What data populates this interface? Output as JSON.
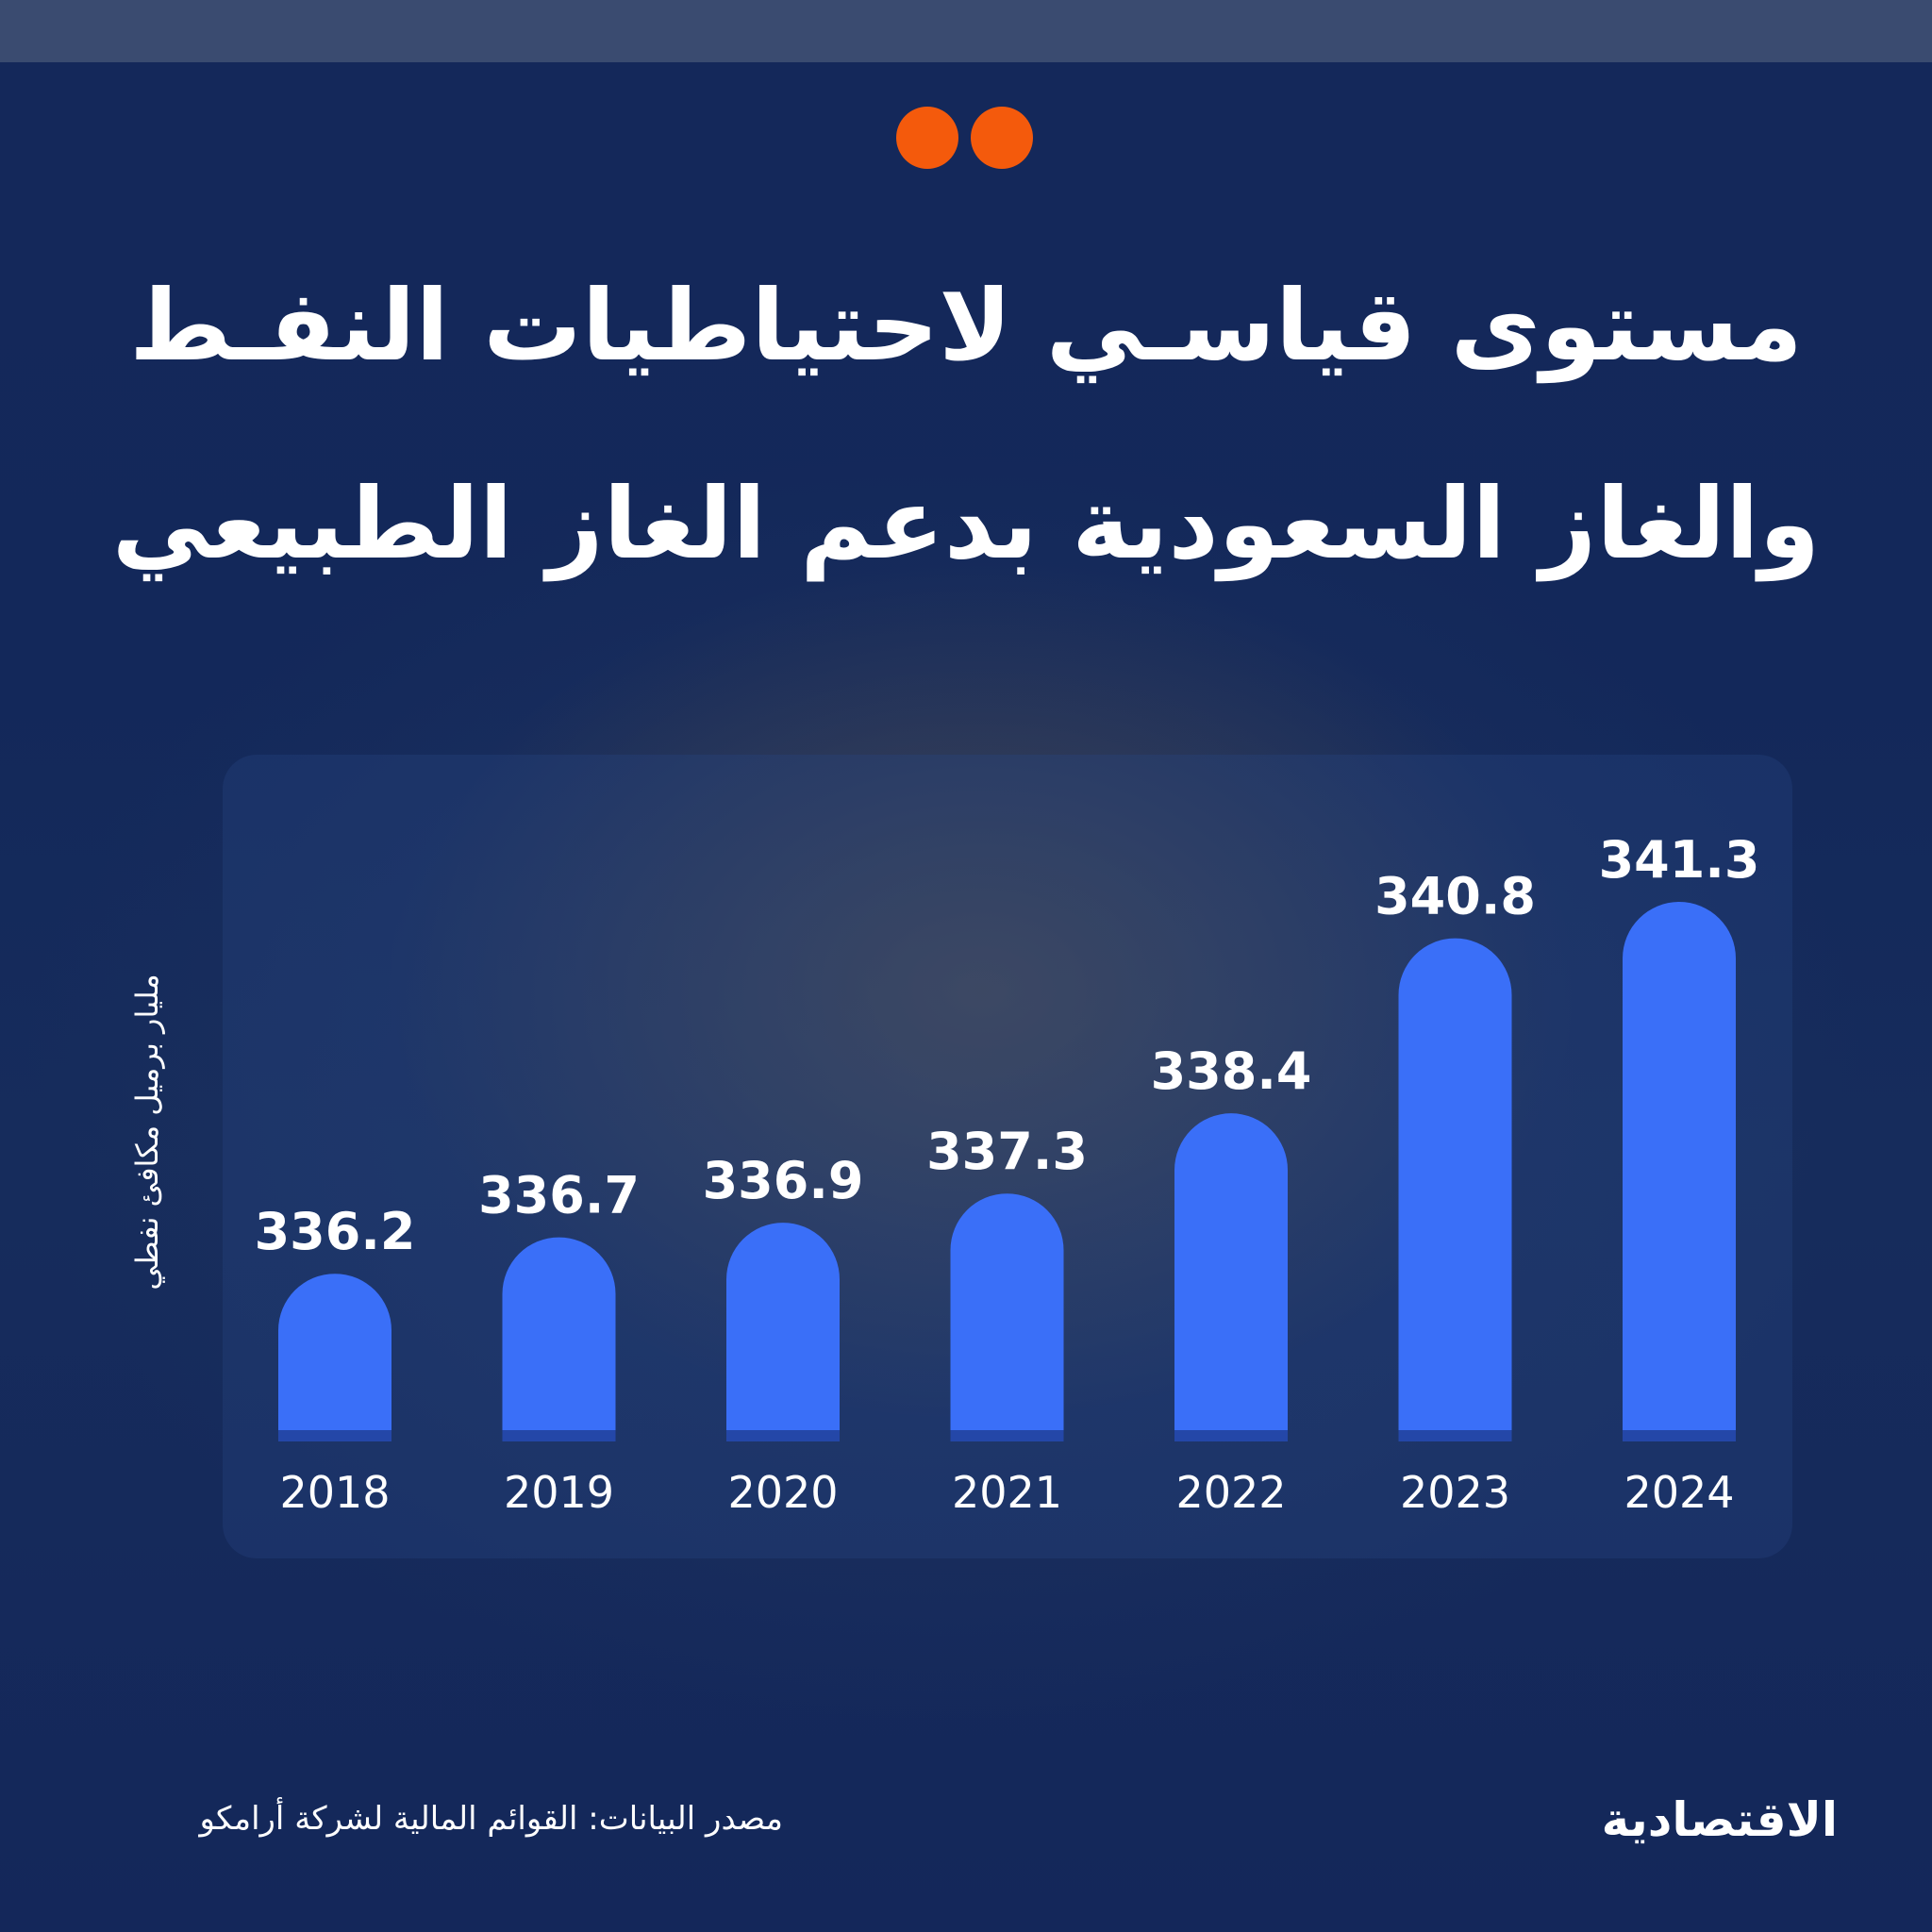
{
  "title": {
    "line1": "مستوى قياسـي لاحتياطيات النفـط",
    "line2": "والغاز السعودية بدعم الغاز الطبيعي"
  },
  "source": "مصدر البيانات: القوائم المالية لشركة أرامكو",
  "logo": "الاقتصادية",
  "colors": {
    "background": "#132650",
    "bar": "#3a6ff8",
    "accent": "#f45a0c",
    "text": "#ffffff"
  },
  "chart_data": {
    "type": "bar",
    "categories": [
      "2018",
      "2019",
      "2020",
      "2021",
      "2022",
      "2023",
      "2024"
    ],
    "values": [
      336.2,
      336.7,
      336.9,
      337.3,
      338.4,
      340.8,
      341.3
    ],
    "value_labels": [
      "336.2",
      "336.7",
      "336.9",
      "337.3",
      "338.4",
      "340.8",
      "341.3"
    ],
    "title": "مستوى قياسـي لاحتياطيات النفـط والغاز السعودية بدعم الغاز الطبيعي",
    "xlabel": "",
    "ylabel": "مليار برميل مكافئ نفطي",
    "ylim": [
      333.9,
      341.3
    ],
    "grid": false,
    "legend": "none"
  }
}
